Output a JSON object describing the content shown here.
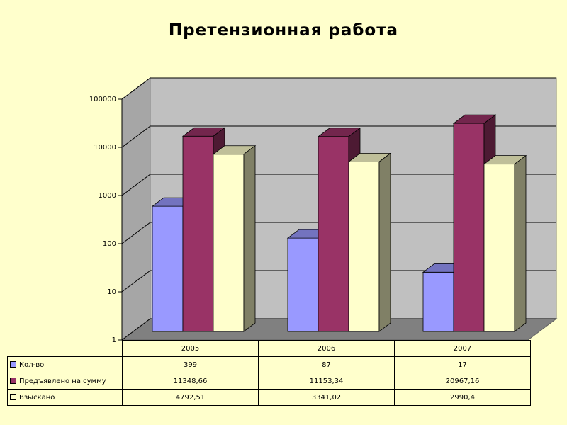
{
  "chart_data": {
    "type": "bar",
    "title": "Претензионная работа",
    "scale": "log",
    "ylim": [
      1,
      100000
    ],
    "yticks": [
      "1",
      "10",
      "100",
      "1000",
      "10000",
      "100000"
    ],
    "categories": [
      "2005",
      "2006",
      "2007"
    ],
    "grid": true,
    "legend": "data-table",
    "series": [
      {
        "name": "Кол-во",
        "color": "#9999ff",
        "values": [
          399,
          87,
          17
        ],
        "labels": [
          "399",
          "87",
          "17"
        ]
      },
      {
        "name": "Предъявлено на сумму",
        "color": "#993366",
        "values": [
          11348.66,
          11153.34,
          20967.16
        ],
        "labels": [
          "11348,66",
          "11153,34",
          "20967,16"
        ]
      },
      {
        "name": "Взыскано",
        "color": "#ffffcc",
        "values": [
          4792.51,
          3341.02,
          2990.4
        ],
        "labels": [
          "4792,51",
          "3341,02",
          "2990,4"
        ]
      }
    ]
  }
}
